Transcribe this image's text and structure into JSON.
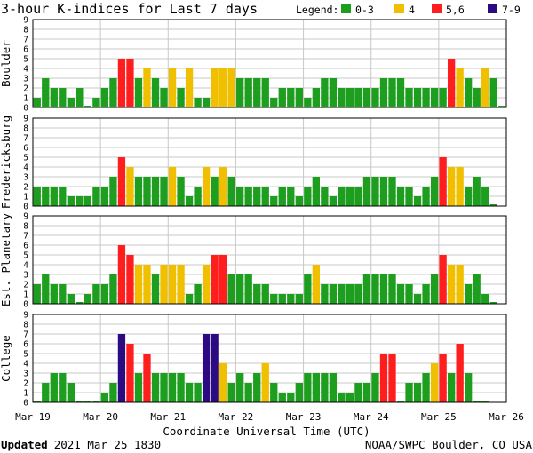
{
  "chart_data": {
    "type": "bar",
    "title": "3-hour K-indices for Last 7 days",
    "legend": {
      "label": "Legend:",
      "placement": "top-right",
      "entries": [
        {
          "label": "0-3",
          "color": "#1e9e1e"
        },
        {
          "label": "4",
          "color": "#f0c000"
        },
        {
          "label": "5,6",
          "color": "#ff1e1e"
        },
        {
          "label": "7-9",
          "color": "#2c0a82"
        }
      ]
    },
    "xlabel": "Coordinate Universal Time (UTC)",
    "x_tick_labels": [
      "Mar 19",
      "Mar 20",
      "Mar 21",
      "Mar 22",
      "Mar 23",
      "Mar 24",
      "Mar 25",
      "Mar 26"
    ],
    "y_ticks": [
      "0",
      "1",
      "2",
      "3",
      "4",
      "5",
      "6",
      "7",
      "8",
      "9"
    ],
    "ylim": [
      0,
      9
    ],
    "intervals_per_day": 8,
    "grid": true,
    "panels": [
      {
        "name": "Boulder",
        "values": [
          1,
          3,
          2,
          2,
          1,
          2,
          0,
          1,
          2,
          3,
          5,
          5,
          3,
          4,
          3,
          2,
          4,
          2,
          4,
          1,
          1,
          4,
          4,
          4,
          3,
          3,
          3,
          3,
          1,
          2,
          2,
          2,
          1,
          2,
          3,
          3,
          2,
          2,
          2,
          2,
          2,
          3,
          3,
          3,
          2,
          2,
          2,
          2,
          2,
          5,
          4,
          3,
          2,
          4,
          3,
          0
        ]
      },
      {
        "name": "Fredericksburg",
        "values": [
          2,
          2,
          2,
          2,
          1,
          1,
          1,
          2,
          2,
          3,
          5,
          4,
          3,
          3,
          3,
          3,
          4,
          3,
          1,
          2,
          4,
          3,
          4,
          3,
          2,
          2,
          2,
          2,
          1,
          2,
          2,
          1,
          2,
          3,
          2,
          1,
          2,
          2,
          2,
          3,
          3,
          3,
          3,
          2,
          2,
          1,
          2,
          3,
          5,
          4,
          4,
          2,
          3,
          2,
          0
        ]
      },
      {
        "name": "Est. Planetary",
        "values": [
          2,
          3,
          2,
          2,
          1,
          0,
          1,
          2,
          2,
          3,
          6,
          5,
          4,
          4,
          3,
          4,
          4,
          4,
          1,
          2,
          4,
          5,
          5,
          3,
          3,
          3,
          2,
          2,
          1,
          1,
          1,
          1,
          3,
          4,
          2,
          2,
          2,
          2,
          2,
          3,
          3,
          3,
          3,
          2,
          2,
          1,
          2,
          3,
          5,
          4,
          4,
          2,
          3,
          1,
          0
        ]
      },
      {
        "name": "College",
        "values": [
          0,
          2,
          3,
          3,
          2,
          0,
          0,
          0,
          1,
          2,
          7,
          6,
          3,
          5,
          3,
          3,
          3,
          3,
          2,
          2,
          7,
          7,
          4,
          2,
          3,
          2,
          3,
          4,
          2,
          1,
          1,
          2,
          3,
          3,
          3,
          3,
          1,
          1,
          2,
          2,
          3,
          5,
          5,
          0,
          2,
          2,
          3,
          4,
          5,
          3,
          6,
          3,
          0,
          0
        ]
      }
    ]
  },
  "footer": {
    "updated_label": "Updated",
    "updated_value": "2021 Mar 25 1830",
    "source": "NOAA/SWPC Boulder, CO USA"
  }
}
